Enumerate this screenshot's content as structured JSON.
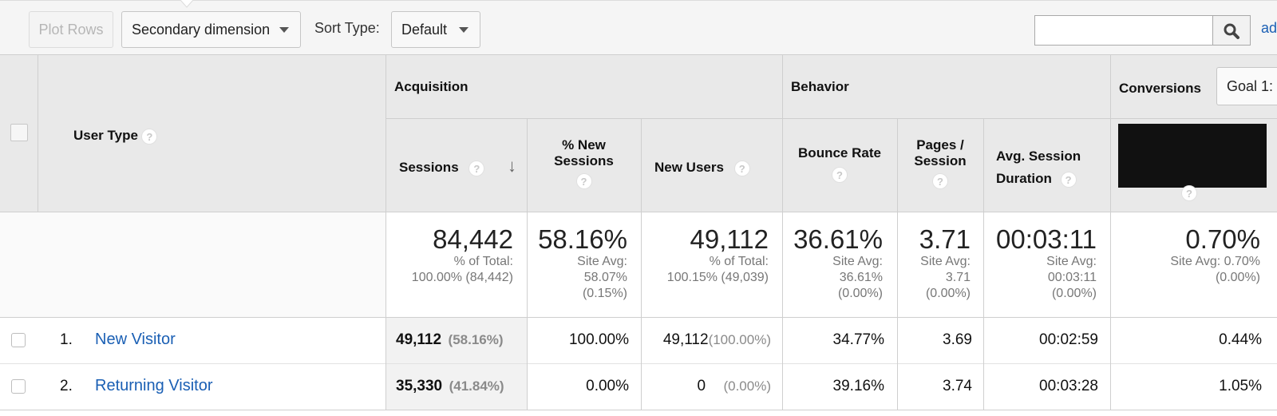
{
  "toolbar": {
    "plot_rows": "Plot Rows",
    "secondary_dimension": "Secondary dimension",
    "sort_type_label": "Sort Type:",
    "sort_type_value": "Default",
    "search_value": "",
    "advanced_link": "ad"
  },
  "table": {
    "dimension_header": "User Type",
    "groups": {
      "acquisition": "Acquisition",
      "behavior": "Behavior",
      "conversions": "Conversions",
      "goal_select": "Goal 1:"
    },
    "columns": {
      "sessions": "Sessions",
      "pct_new_sessions_1": "% New",
      "pct_new_sessions_2": "Sessions",
      "new_users": "New Users",
      "bounce_rate": "Bounce Rate",
      "pages_session_1": "Pages /",
      "pages_session_2": "Session",
      "avg_duration_1": "Avg. Session",
      "avg_duration_2": "Duration"
    },
    "totals": {
      "sessions": "84,442",
      "sessions_sub_1": "% of Total:",
      "sessions_sub_2": "100.00% (84,442)",
      "pct_new": "58.16%",
      "pct_new_sub_1": "Site Avg:",
      "pct_new_sub_2": "58.07%",
      "pct_new_sub_3": "(0.15%)",
      "new_users": "49,112",
      "new_users_sub_1": "% of Total:",
      "new_users_sub_2": "100.15% (49,039)",
      "bounce": "36.61%",
      "bounce_sub_1": "Site Avg:",
      "bounce_sub_2": "36.61%",
      "bounce_sub_3": "(0.00%)",
      "pages": "3.71",
      "pages_sub_1": "Site Avg:",
      "pages_sub_2": "3.71",
      "pages_sub_3": "(0.00%)",
      "duration": "00:03:11",
      "duration_sub_1": "Site Avg:",
      "duration_sub_2": "00:03:11",
      "duration_sub_3": "(0.00%)",
      "conversion": "0.70%",
      "conversion_sub_1": "Site Avg: 0.70%",
      "conversion_sub_2": "(0.00%)"
    },
    "rows": [
      {
        "index": "1.",
        "user_type": "New Visitor",
        "sessions": "49,112",
        "sessions_pct": "(58.16%)",
        "pct_new": "100.00%",
        "new_users": "49,112",
        "new_users_pct": "(100.00%)",
        "bounce": "34.77%",
        "pages": "3.69",
        "duration": "00:02:59",
        "conversion": "0.44%"
      },
      {
        "index": "2.",
        "user_type": "Returning Visitor",
        "sessions": "35,330",
        "sessions_pct": "(41.84%)",
        "pct_new": "0.00%",
        "new_users": "0",
        "new_users_pct": "(0.00%)",
        "bounce": "39.16%",
        "pages": "3.74",
        "duration": "00:03:28",
        "conversion": "1.05%"
      }
    ]
  },
  "icons": {
    "help": "?",
    "sort_arrow": "↓"
  }
}
